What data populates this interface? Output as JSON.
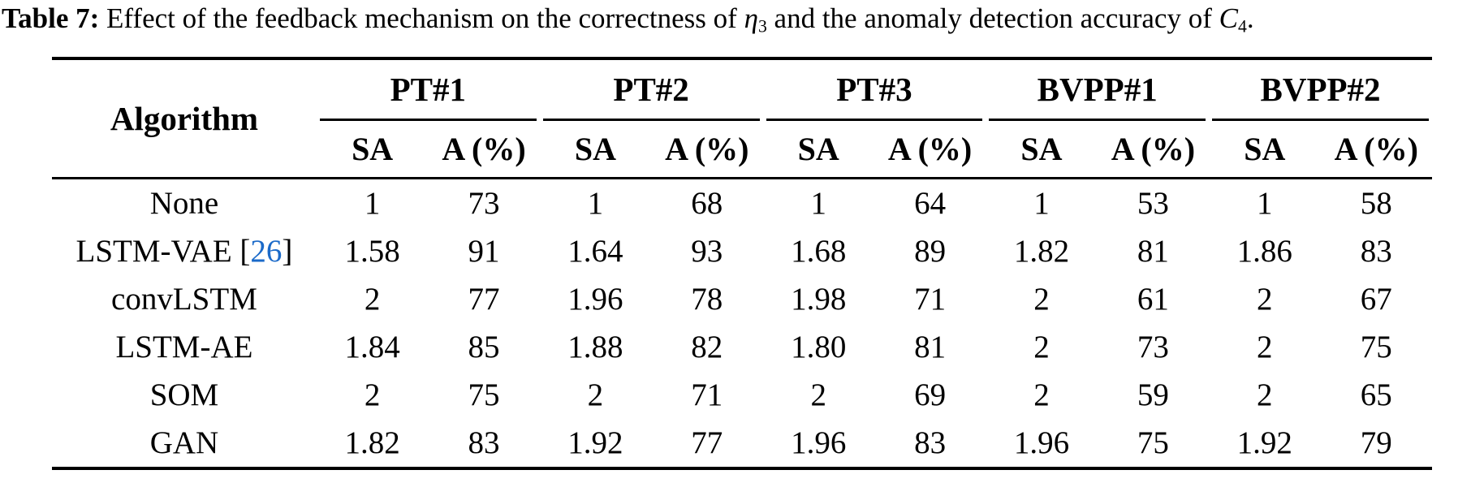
{
  "accent_color": "#1B6AC9",
  "caption": {
    "label": "Table 7:",
    "part1": " Effect of the feedback mechanism on the correctness of ",
    "eta": "η",
    "eta_sub": "3",
    "part2": " and the anomaly detection accuracy of ",
    "c": "C",
    "c_sub": "4",
    "period": "."
  },
  "table": {
    "algorithm_header": "Algorithm",
    "groups": [
      {
        "label": "PT#1"
      },
      {
        "label": "PT#2"
      },
      {
        "label": "PT#3"
      },
      {
        "label": "BVPP#1"
      },
      {
        "label": "BVPP#2"
      }
    ],
    "subheaders": [
      "SA",
      "A (%)"
    ],
    "rows": [
      {
        "algorithm": "None",
        "citation": "",
        "values": [
          "1",
          "73",
          "1",
          "68",
          "1",
          "64",
          "1",
          "53",
          "1",
          "58"
        ]
      },
      {
        "algorithm": "LSTM-VAE",
        "citation": "[26]",
        "values": [
          "1.58",
          "91",
          "1.64",
          "93",
          "1.68",
          "89",
          "1.82",
          "81",
          "1.86",
          "83"
        ]
      },
      {
        "algorithm": "convLSTM",
        "citation": "",
        "values": [
          "2",
          "77",
          "1.96",
          "78",
          "1.98",
          "71",
          "2",
          "61",
          "2",
          "67"
        ]
      },
      {
        "algorithm": "LSTM-AE",
        "citation": "",
        "values": [
          "1.84",
          "85",
          "1.88",
          "82",
          "1.80",
          "81",
          "2",
          "73",
          "2",
          "75"
        ]
      },
      {
        "algorithm": "SOM",
        "citation": "",
        "values": [
          "2",
          "75",
          "2",
          "71",
          "2",
          "69",
          "2",
          "59",
          "2",
          "65"
        ]
      },
      {
        "algorithm": "GAN",
        "citation": "",
        "values": [
          "1.82",
          "83",
          "1.92",
          "77",
          "1.96",
          "83",
          "1.96",
          "75",
          "1.92",
          "79"
        ]
      }
    ]
  },
  "chart_data": {
    "type": "table",
    "title": "Table 7: Effect of the feedback mechanism on the correctness of η3 and the anomaly detection accuracy of C4.",
    "column_groups": [
      "PT#1",
      "PT#2",
      "PT#3",
      "BVPP#1",
      "BVPP#2"
    ],
    "sub_columns": [
      "SA",
      "A (%)"
    ],
    "row_labels": [
      "None",
      "LSTM-VAE [26]",
      "convLSTM",
      "LSTM-AE",
      "SOM",
      "GAN"
    ],
    "values": [
      [
        1,
        73,
        1,
        68,
        1,
        64,
        1,
        53,
        1,
        58
      ],
      [
        1.58,
        91,
        1.64,
        93,
        1.68,
        89,
        1.82,
        81,
        1.86,
        83
      ],
      [
        2,
        77,
        1.96,
        78,
        1.98,
        71,
        2,
        61,
        2,
        67
      ],
      [
        1.84,
        85,
        1.88,
        82,
        1.8,
        81,
        2,
        73,
        2,
        75
      ],
      [
        2,
        75,
        2,
        71,
        2,
        69,
        2,
        59,
        2,
        65
      ],
      [
        1.82,
        83,
        1.92,
        77,
        1.96,
        83,
        1.96,
        75,
        1.92,
        79
      ]
    ]
  }
}
